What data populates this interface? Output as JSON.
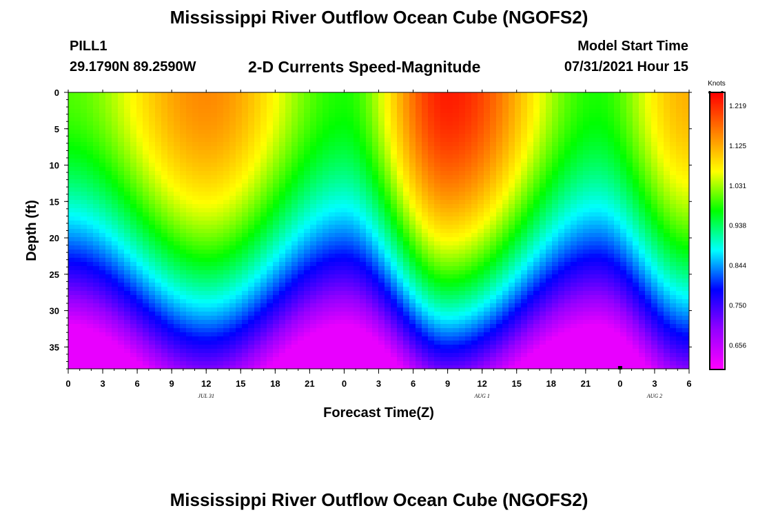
{
  "header": {
    "title": "Mississippi River Outflow Ocean Cube (NGOFS2)",
    "station": "PILL1",
    "location": "29.1790N  89.2590W",
    "subtitle": "2-D Currents Speed-Magnitude",
    "model_start_label": "Model Start Time",
    "model_start_value": "07/31/2021 Hour 15"
  },
  "footer": {
    "title": "Mississippi River Outflow Ocean Cube (NGOFS2)"
  },
  "chart_data": {
    "type": "heatmap",
    "xlabel": "Forecast Time(Z)",
    "ylabel": "Depth (ft)",
    "x_tick_labels": [
      "0",
      "3",
      "6",
      "9",
      "12",
      "15",
      "18",
      "21",
      "0",
      "3",
      "6",
      "9",
      "12",
      "15",
      "18",
      "21",
      "0",
      "3",
      "6"
    ],
    "x_range_hours": [
      0,
      54
    ],
    "day_labels": [
      {
        "text": "JUL 31",
        "hour": 12
      },
      {
        "text": "AUG 1",
        "hour": 36
      },
      {
        "text": "AUG 2",
        "hour": 51
      }
    ],
    "y_ticks": [
      0,
      5,
      10,
      15,
      20,
      25,
      30,
      35
    ],
    "ylim": [
      0,
      38
    ],
    "y_inverted": true,
    "colorbar": {
      "title": "Knots",
      "ticks": [
        "1.219",
        "1.125",
        "1.031",
        "0.938",
        "0.844",
        "0.750",
        "0.656"
      ],
      "tick_values": [
        1.219,
        1.125,
        1.031,
        0.938,
        0.844,
        0.75,
        0.656
      ],
      "vmin": 0.6,
      "vmax": 1.25,
      "colormap": [
        "#ff00ff",
        "#9400ff",
        "#0000ff",
        "#00ffff",
        "#00ff00",
        "#ffff00",
        "#ff8000",
        "#ff0000"
      ]
    },
    "surface_speed_peaks": [
      {
        "hour": 12,
        "value": 1.15
      },
      {
        "hour": 33,
        "value": 1.23
      },
      {
        "hour": 54,
        "value": 1.12
      }
    ],
    "surface_speed_minima": [
      {
        "hour": 0,
        "value": 1.0
      },
      {
        "hour": 24,
        "value": 0.98
      },
      {
        "hour": 46,
        "value": 0.98
      }
    ],
    "bottom_speed": 0.62,
    "marker": {
      "hour": 48,
      "depth": 38
    }
  }
}
